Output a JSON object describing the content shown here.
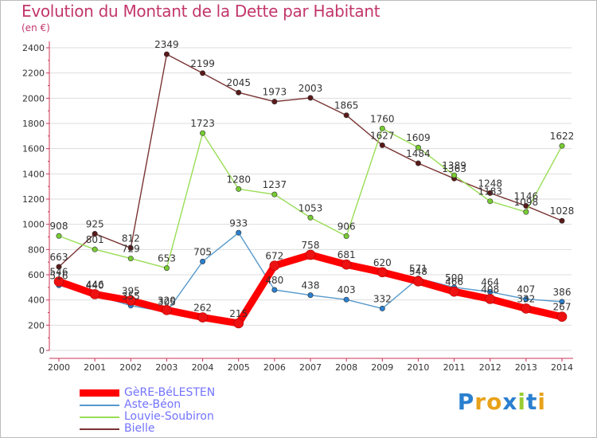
{
  "chart_data": {
    "type": "line",
    "title": "Evolution du Montant de la Dette par Habitant",
    "subtitle": "(en €)",
    "xlabel": "",
    "ylabel": "",
    "categories": [
      "2000",
      "2001",
      "2002",
      "2003",
      "2004",
      "2005",
      "2006",
      "2007",
      "2008",
      "2009",
      "2010",
      "2011",
      "2012",
      "2013",
      "2014"
    ],
    "ylim": [
      0,
      2400
    ],
    "yticks": [
      0,
      200,
      400,
      600,
      800,
      1000,
      1200,
      1400,
      1600,
      1800,
      2000,
      2200,
      2400
    ],
    "grid": true,
    "legend_position": "bottom-left",
    "series": [
      {
        "name": "GèRE-BéLESTEN",
        "color": "#ff0000",
        "marker": "#cc1111",
        "values": [
          546,
          446,
          395,
          320,
          262,
          215,
          672,
          758,
          681,
          620,
          548,
          466,
          408,
          332,
          267
        ]
      },
      {
        "name": "Aste-Béon",
        "color": "#5599cc",
        "marker": "#2a7fcf",
        "values": [
          516,
          440,
          355,
          305,
          705,
          933,
          480,
          438,
          403,
          332,
          571,
          500,
          464,
          407,
          386
        ]
      },
      {
        "name": "Louvie-Soubiron",
        "color": "#99dd55",
        "marker": "#77cc33",
        "values": [
          908,
          801,
          729,
          653,
          1723,
          1280,
          1237,
          1053,
          906,
          1760,
          1609,
          1389,
          1183,
          1098,
          1622
        ]
      },
      {
        "name": "Bielle",
        "color": "#7a3333",
        "marker": "#5a1a1a",
        "values": [
          663,
          925,
          812,
          2349,
          2199,
          2045,
          1973,
          2003,
          1865,
          1627,
          1484,
          1363,
          1248,
          1146,
          1028
        ]
      }
    ]
  },
  "brand": {
    "name": "Proxiti"
  }
}
